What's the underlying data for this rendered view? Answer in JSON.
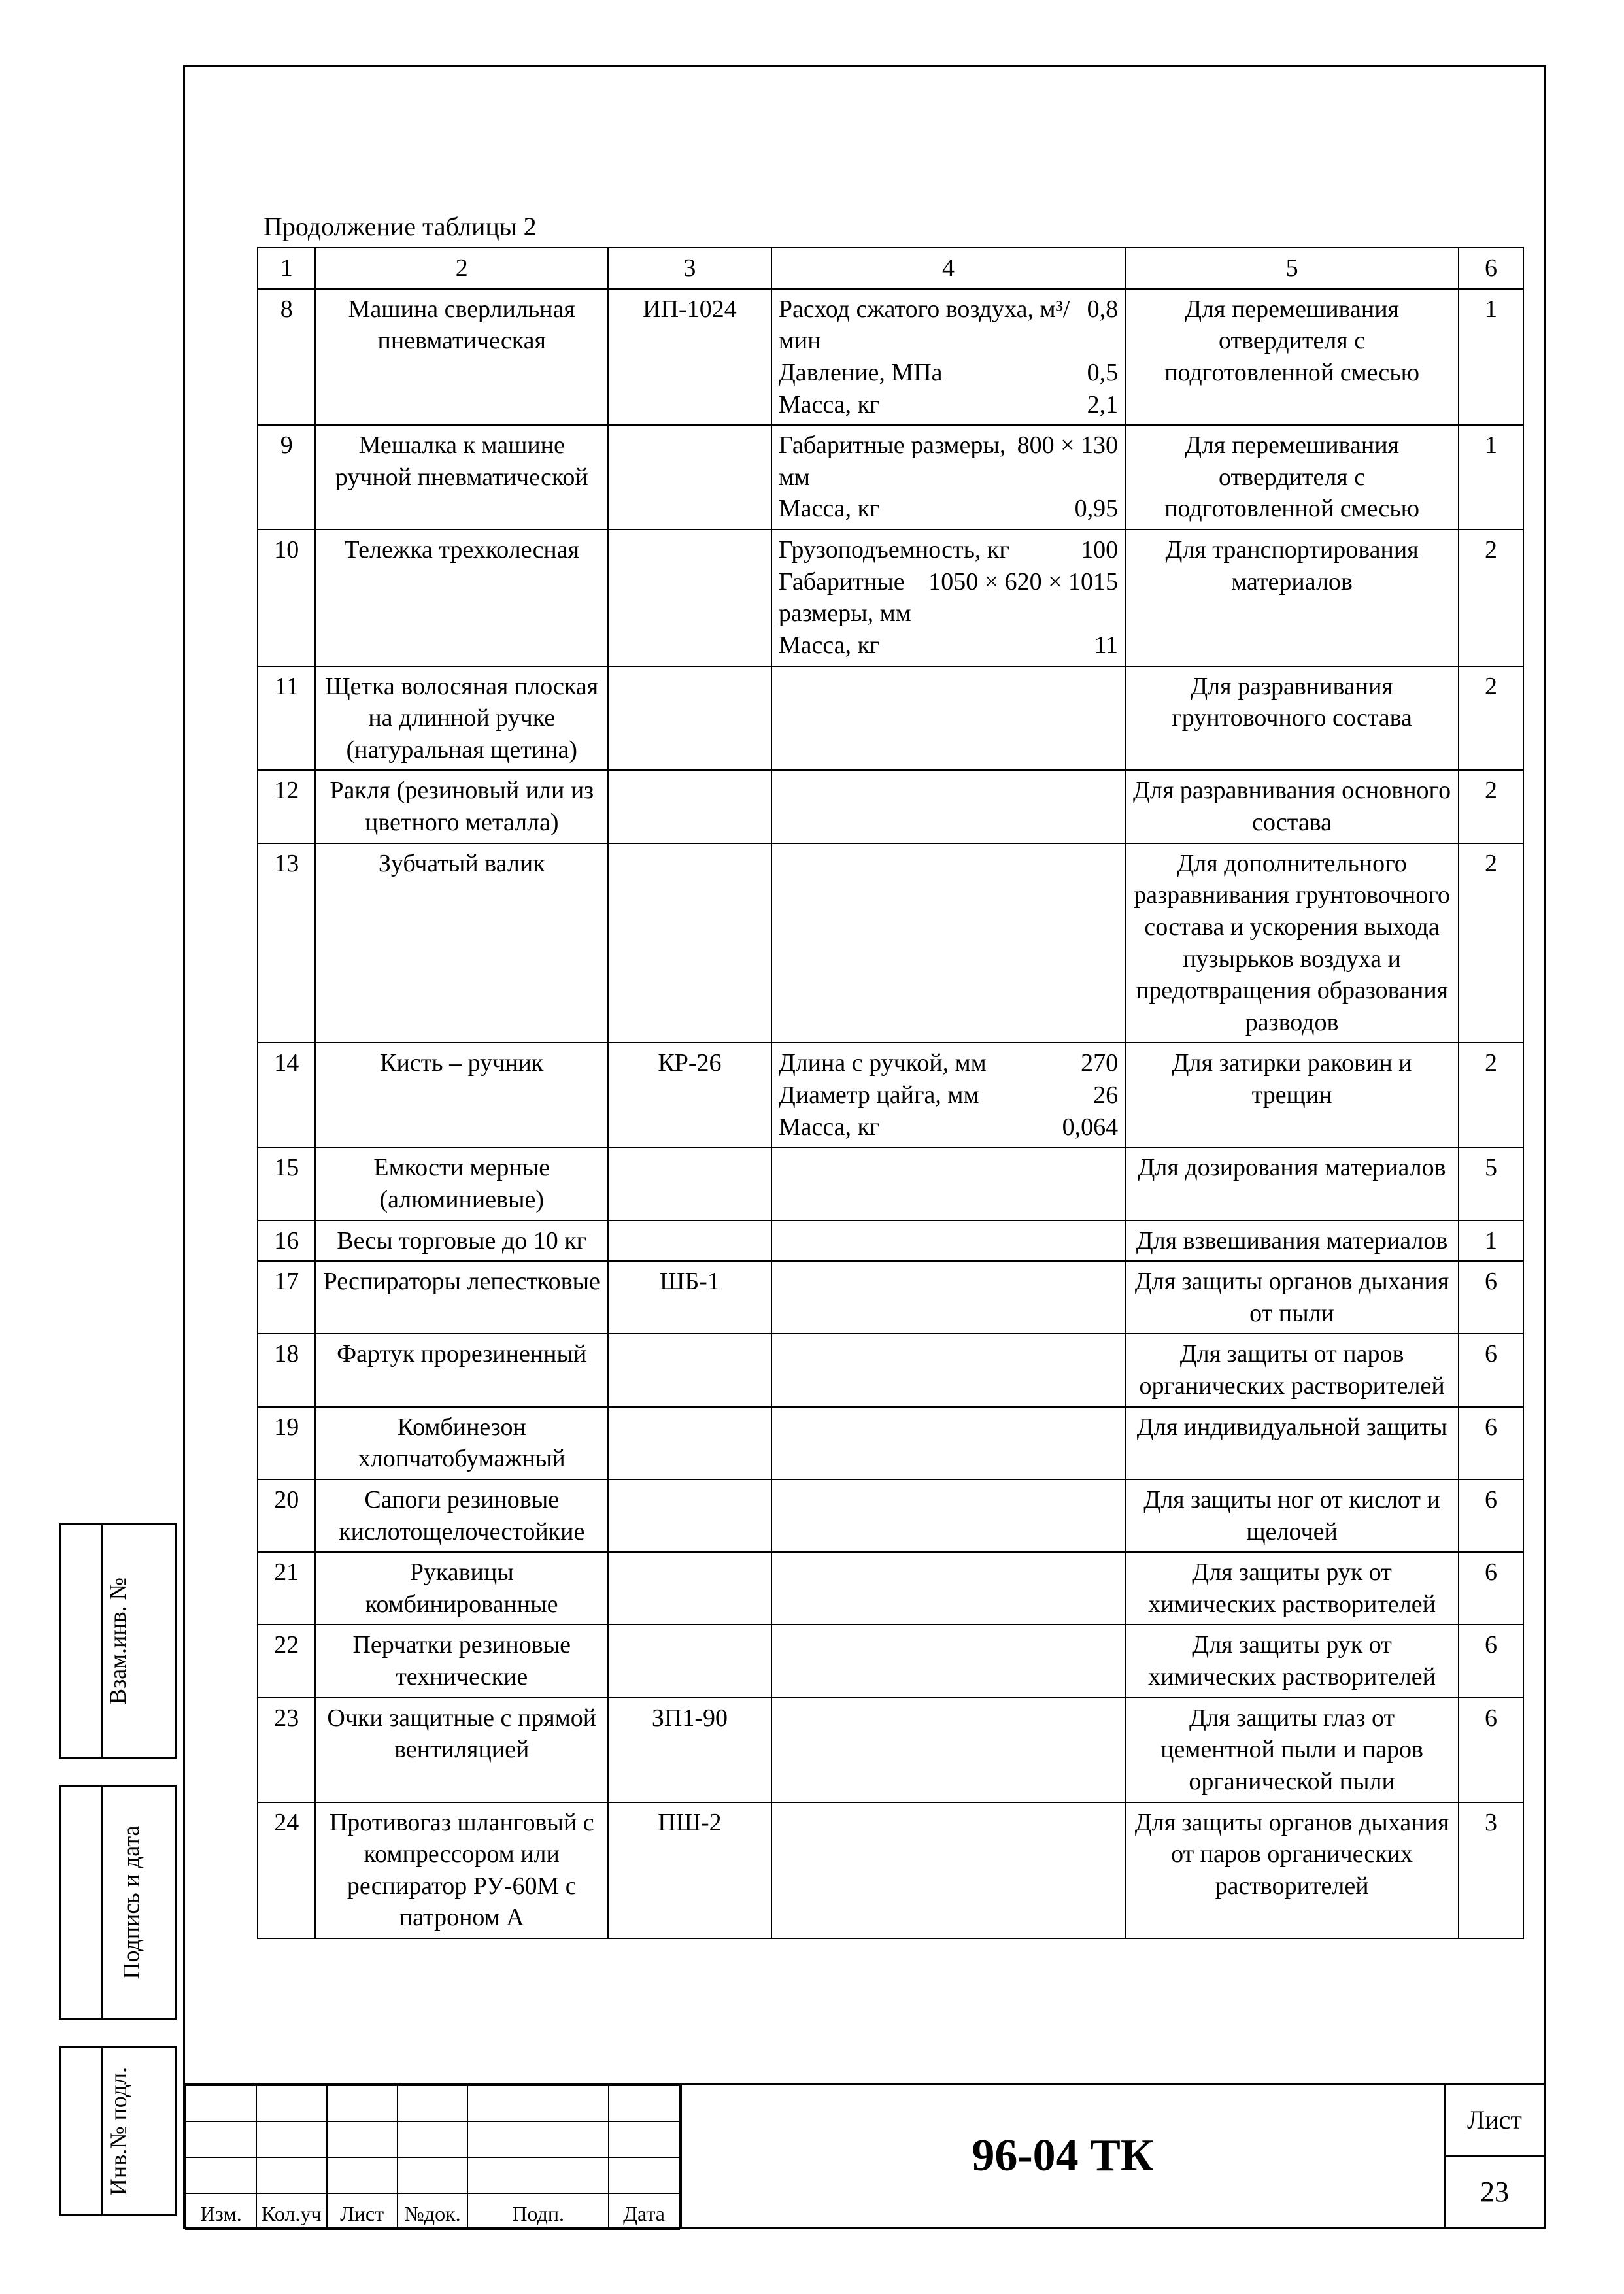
{
  "caption": "Продолжение таблицы 2",
  "header_cells": [
    "1",
    "2",
    "3",
    "4",
    "5",
    "6"
  ],
  "rows": [
    {
      "n": "8",
      "name": "Машина сверлильная пневматическая",
      "code": "ИП-1024",
      "specs": [
        {
          "label": "Расход сжатого воздуха, м³/мин",
          "value": "0,8"
        },
        {
          "label": "Давление, МПа",
          "value": "0,5"
        },
        {
          "label": "Масса, кг",
          "value": "2,1"
        }
      ],
      "purpose": "Для перемешивания отвердителя с подготовленной смесью",
      "qty": "1"
    },
    {
      "n": "9",
      "name": "Мешалка к машине ручной пневматической",
      "code": "",
      "specs": [
        {
          "label": "Габаритные размеры, мм",
          "value": "800 × 130"
        },
        {
          "label": "Масса, кг",
          "value": "0,95"
        }
      ],
      "purpose": "Для перемешивания отвердителя с подготовленной смесью",
      "qty": "1"
    },
    {
      "n": "10",
      "name": "Тележка трехколесная",
      "code": "",
      "specs": [
        {
          "label": "Грузоподъемность, кг",
          "value": "100"
        },
        {
          "label": "Габаритные размеры, мм",
          "value": "1050 × 620 × 1015"
        },
        {
          "label": "Масса, кг",
          "value": "11"
        }
      ],
      "purpose": "Для транспортирования материалов",
      "qty": "2"
    },
    {
      "n": "11",
      "name": "Щетка волосяная плоская на длинной ручке (натуральная щетина)",
      "code": "",
      "specs": [],
      "purpose": "Для разравнивания грунтовочного состава",
      "qty": "2"
    },
    {
      "n": "12",
      "name": "Ракля (резиновый или из цветного металла)",
      "code": "",
      "specs": [],
      "purpose": "Для разравнивания основного состава",
      "qty": "2"
    },
    {
      "n": "13",
      "name": "Зубчатый валик",
      "code": "",
      "specs": [],
      "purpose": "Для дополнительного разравнивания грунтовочного состава и ускорения выхода пузырьков воздуха и предотвращения образования разводов",
      "qty": "2"
    },
    {
      "n": "14",
      "name": "Кисть – ручник",
      "code": "КР-26",
      "specs": [
        {
          "label": "Длина с ручкой, мм",
          "value": "270"
        },
        {
          "label": "Диаметр цайга, мм",
          "value": "26"
        },
        {
          "label": "Масса, кг",
          "value": "0,064"
        }
      ],
      "purpose": "Для затирки раковин и трещин",
      "qty": "2"
    },
    {
      "n": "15",
      "name": "Емкости мерные (алюминиевые)",
      "code": "",
      "specs": [],
      "purpose": "Для дозирования материалов",
      "qty": "5"
    },
    {
      "n": "16",
      "name": "Весы торговые до 10 кг",
      "code": "",
      "specs": [],
      "purpose": "Для взвешивания материалов",
      "qty": "1"
    },
    {
      "n": "17",
      "name": "Респираторы лепестковые",
      "code": "ШБ-1",
      "specs": [],
      "purpose": "Для защиты органов дыхания от пыли",
      "qty": "6"
    },
    {
      "n": "18",
      "name": "Фартук прорезиненный",
      "code": "",
      "specs": [],
      "purpose": "Для защиты от паров органических растворителей",
      "qty": "6"
    },
    {
      "n": "19",
      "name": "Комбинезон хлопчатобумажный",
      "code": "",
      "specs": [],
      "purpose": "Для индивидуальной защиты",
      "qty": "6"
    },
    {
      "n": "20",
      "name": "Сапоги резиновые кислотощелочестойкие",
      "code": "",
      "specs": [],
      "purpose": "Для защиты ног от кислот и щелочей",
      "qty": "6"
    },
    {
      "n": "21",
      "name": "Рукавицы комбинированные",
      "code": "",
      "specs": [],
      "purpose": "Для защиты рук от химических растворителей",
      "qty": "6"
    },
    {
      "n": "22",
      "name": "Перчатки резиновые технические",
      "code": "",
      "specs": [],
      "purpose": "Для защиты рук от химических растворителей",
      "qty": "6"
    },
    {
      "n": "23",
      "name": "Очки защитные с прямой вентиляцией",
      "code": "ЗП1-90",
      "specs": [],
      "purpose": "Для защиты глаз от цементной пыли и паров органической пыли",
      "qty": "6"
    },
    {
      "n": "24",
      "name": "Противогаз шланговый с компрессором или респиратор РУ-60М с патроном А",
      "code": "ПШ-2",
      "specs": [],
      "purpose": "Для защиты органов дыхания от паров органических растворителей",
      "qty": "3"
    }
  ],
  "title_block": {
    "doc_number": "96-04 ТК",
    "sheet_label": "Лист",
    "sheet_number": "23",
    "cols": [
      "Изм.",
      "Кол.уч",
      "Лист",
      "№док.",
      "Подп.",
      "Дата"
    ]
  },
  "side_stamps": {
    "s1": "Взам.инв. №",
    "s2": "Подпись и дата",
    "s3": "Инв.№ подл."
  }
}
